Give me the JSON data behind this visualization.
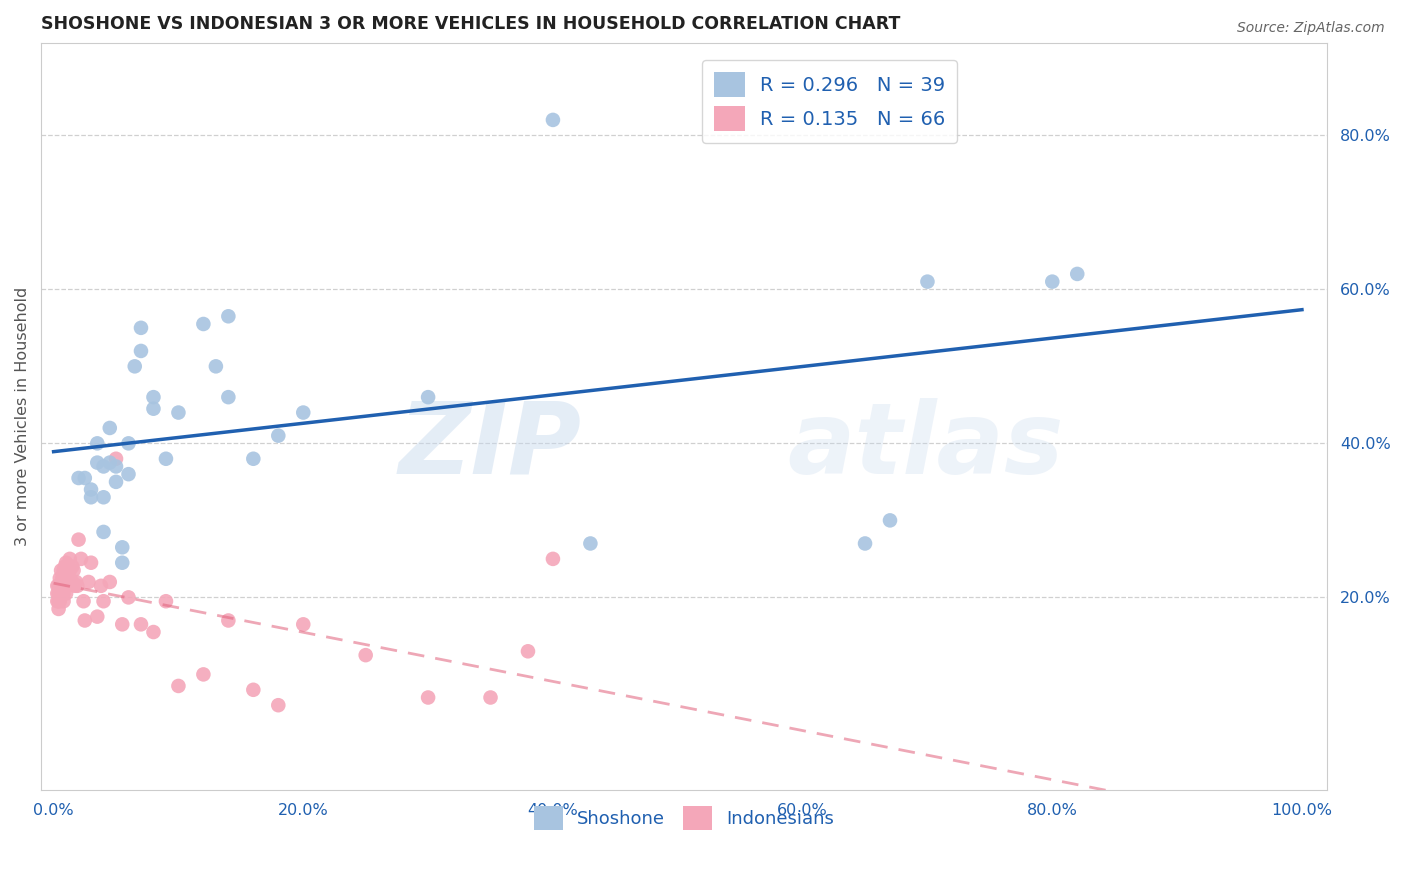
{
  "title": "SHOSHONE VS INDONESIAN 3 OR MORE VEHICLES IN HOUSEHOLD CORRELATION CHART",
  "source": "Source: ZipAtlas.com",
  "ylabel": "3 or more Vehicles in Household",
  "xlim": [
    -0.01,
    1.02
  ],
  "ylim": [
    -0.05,
    0.92
  ],
  "x_tick_labels": [
    "0.0%",
    "20.0%",
    "40.0%",
    "60.0%",
    "80.0%",
    "100.0%"
  ],
  "x_tick_vals": [
    0.0,
    0.2,
    0.4,
    0.6,
    0.8,
    1.0
  ],
  "y_tick_labels": [
    "20.0%",
    "40.0%",
    "60.0%",
    "80.0%"
  ],
  "y_tick_vals": [
    0.2,
    0.4,
    0.6,
    0.8
  ],
  "shoshone_R": 0.296,
  "shoshone_N": 39,
  "indonesian_R": 0.135,
  "indonesian_N": 66,
  "shoshone_color": "#a8c4e0",
  "indonesian_color": "#f4a7b9",
  "shoshone_line_color": "#2060b0",
  "indonesian_line_color": "#e0607a",
  "legend_color": "#2060b0",
  "watermark_zip": "ZIP",
  "watermark_atlas": "atlas",
  "shoshone_x": [
    0.02,
    0.025,
    0.03,
    0.03,
    0.035,
    0.035,
    0.04,
    0.04,
    0.04,
    0.045,
    0.045,
    0.05,
    0.05,
    0.055,
    0.055,
    0.06,
    0.06,
    0.065,
    0.07,
    0.07,
    0.08,
    0.08,
    0.09,
    0.1,
    0.12,
    0.13,
    0.14,
    0.14,
    0.16,
    0.18,
    0.2,
    0.3,
    0.4,
    0.43,
    0.65,
    0.67,
    0.7,
    0.8,
    0.82
  ],
  "shoshone_y": [
    0.355,
    0.355,
    0.34,
    0.33,
    0.4,
    0.375,
    0.37,
    0.33,
    0.285,
    0.42,
    0.375,
    0.37,
    0.35,
    0.265,
    0.245,
    0.4,
    0.36,
    0.5,
    0.52,
    0.55,
    0.46,
    0.445,
    0.38,
    0.44,
    0.555,
    0.5,
    0.565,
    0.46,
    0.38,
    0.41,
    0.44,
    0.46,
    0.82,
    0.27,
    0.27,
    0.3,
    0.61,
    0.61,
    0.62
  ],
  "indonesian_x": [
    0.003,
    0.003,
    0.003,
    0.004,
    0.004,
    0.004,
    0.004,
    0.005,
    0.005,
    0.005,
    0.005,
    0.006,
    0.006,
    0.006,
    0.007,
    0.007,
    0.008,
    0.008,
    0.008,
    0.008,
    0.009,
    0.009,
    0.01,
    0.01,
    0.01,
    0.01,
    0.011,
    0.011,
    0.012,
    0.012,
    0.013,
    0.013,
    0.014,
    0.015,
    0.015,
    0.016,
    0.017,
    0.018,
    0.019,
    0.02,
    0.022,
    0.024,
    0.025,
    0.028,
    0.03,
    0.035,
    0.038,
    0.04,
    0.045,
    0.05,
    0.055,
    0.06,
    0.07,
    0.08,
    0.09,
    0.1,
    0.12,
    0.14,
    0.16,
    0.18,
    0.2,
    0.25,
    0.3,
    0.35,
    0.38,
    0.4
  ],
  "indonesian_y": [
    0.215,
    0.205,
    0.195,
    0.215,
    0.205,
    0.195,
    0.185,
    0.225,
    0.215,
    0.205,
    0.195,
    0.235,
    0.215,
    0.205,
    0.225,
    0.215,
    0.235,
    0.22,
    0.205,
    0.195,
    0.24,
    0.22,
    0.245,
    0.23,
    0.215,
    0.205,
    0.24,
    0.225,
    0.235,
    0.22,
    0.25,
    0.235,
    0.22,
    0.24,
    0.22,
    0.235,
    0.215,
    0.22,
    0.215,
    0.275,
    0.25,
    0.195,
    0.17,
    0.22,
    0.245,
    0.175,
    0.215,
    0.195,
    0.22,
    0.38,
    0.165,
    0.2,
    0.165,
    0.155,
    0.195,
    0.085,
    0.1,
    0.17,
    0.08,
    0.06,
    0.165,
    0.125,
    0.07,
    0.07,
    0.13,
    0.25
  ],
  "background_color": "#ffffff"
}
